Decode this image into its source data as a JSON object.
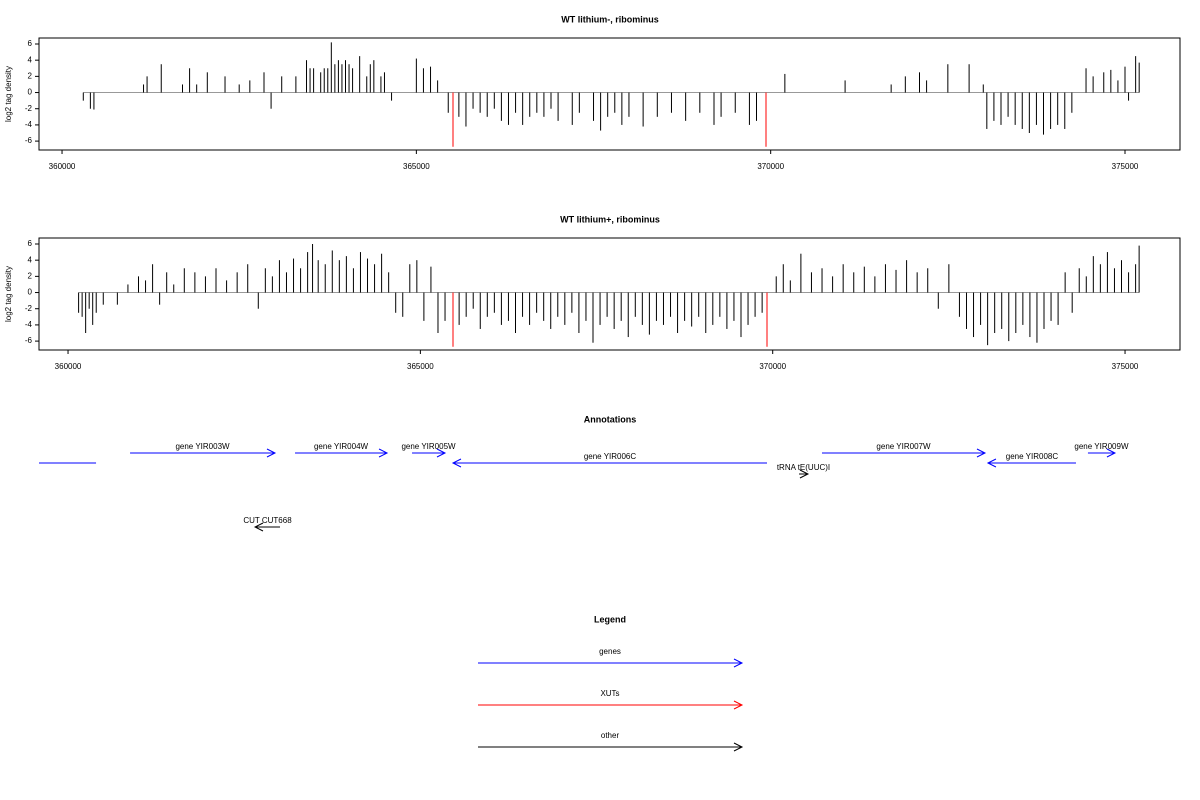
{
  "chart_data": [
    {
      "type": "bar",
      "title": "WT lithium-, ribominus",
      "y_label": "log2 tag density",
      "xlim": [
        359675,
        375776
      ],
      "ylim": [
        -7.1,
        6.74
      ],
      "xticks": [
        360000,
        365000,
        370000,
        375000
      ],
      "yticks": [
        -6,
        -4,
        -2,
        0,
        2,
        4,
        6
      ],
      "series": [
        {
          "color": "#000000",
          "x": [
            360300,
            360400,
            360450,
            361150,
            361200,
            361400,
            361700,
            361800,
            361900,
            362050,
            362300,
            362500,
            362650,
            362850,
            362950,
            363100,
            363300,
            363450,
            363500,
            363550,
            363650,
            363700,
            363750,
            363800,
            363850,
            363900,
            363950,
            364000,
            364050,
            364100,
            364200,
            364300,
            364350,
            364400,
            364500,
            364550,
            364650,
            365000,
            365100,
            365200,
            365300,
            365450,
            365600,
            365700,
            365800,
            365900,
            366000,
            366100,
            366200,
            366300,
            366400,
            366500,
            366600,
            366700,
            366800,
            366900,
            367000,
            367200,
            367300,
            367500,
            367600,
            367700,
            367800,
            367900,
            368000,
            368200,
            368400,
            368600,
            368800,
            369000,
            369200,
            369300,
            369500,
            369700,
            369800,
            370200,
            371050,
            371700,
            371900,
            372100,
            372200,
            372500,
            372800,
            373000,
            373050,
            373150,
            373250,
            373350,
            373450,
            373550,
            373650,
            373750,
            373850,
            373950,
            374050,
            374150,
            374250,
            374450,
            374550,
            374700,
            374800,
            374900,
            375000,
            375050,
            375150,
            375200
          ],
          "values": [
            -1,
            -2,
            -2.1,
            1,
            2,
            3.5,
            1,
            3,
            1,
            2.5,
            2,
            1,
            1.5,
            2.5,
            -2,
            2,
            2,
            4,
            3,
            3,
            2.5,
            3,
            3,
            6.2,
            3.5,
            4,
            3.5,
            4,
            3.5,
            3,
            4.5,
            2,
            3.5,
            4,
            2,
            2.5,
            -1,
            4.2,
            3,
            3.2,
            1.5,
            -2.5,
            -3,
            -4.2,
            -2,
            -2.5,
            -3,
            -2,
            -3.5,
            -4,
            -2.5,
            -4,
            -3,
            -2.5,
            -3,
            -2,
            -3.5,
            -4,
            -2.5,
            -3.5,
            -4.7,
            -3,
            -2.5,
            -4,
            -3,
            -4.2,
            -3,
            -2.5,
            -3.5,
            -2.5,
            -4,
            -3,
            -2.5,
            -4,
            -3.5,
            2.3,
            1.5,
            1,
            2,
            2.5,
            1.5,
            3.5,
            3.5,
            1,
            -4.5,
            -3.5,
            -4,
            -3,
            -4,
            -4.5,
            -5,
            -4,
            -5.2,
            -4.5,
            -4,
            -4.5,
            -2.5,
            3,
            2,
            2.5,
            2.8,
            1.5,
            3.2,
            -1,
            4.5,
            3.7
          ]
        },
        {
          "color": "#ff0000",
          "x": [
            365517,
            369934
          ],
          "values": [
            -6.7,
            -6.7
          ]
        }
      ]
    },
    {
      "type": "bar",
      "title": "WT lithium+, ribominus",
      "y_label": "log2 tag density",
      "xlim": [
        359588,
        375780
      ],
      "ylim": [
        -7.1,
        6.74
      ],
      "xticks": [
        360000,
        365000,
        370000,
        375000
      ],
      "yticks": [
        -6,
        -4,
        -2,
        0,
        2,
        4,
        6
      ],
      "series": [
        {
          "color": "#000000",
          "x": [
            360150,
            360200,
            360250,
            360300,
            360350,
            360400,
            360500,
            360700,
            360850,
            361000,
            361100,
            361200,
            361300,
            361400,
            361500,
            361650,
            361800,
            361950,
            362100,
            362250,
            362400,
            362550,
            362700,
            362800,
            362900,
            363000,
            363100,
            363200,
            363300,
            363400,
            363470,
            363550,
            363650,
            363750,
            363850,
            363950,
            364050,
            364150,
            364250,
            364350,
            364450,
            364550,
            364650,
            364750,
            364850,
            364950,
            365050,
            365150,
            365250,
            365350,
            365550,
            365650,
            365750,
            365850,
            365950,
            366050,
            366150,
            366250,
            366350,
            366450,
            366550,
            366650,
            366750,
            366850,
            366950,
            367050,
            367150,
            367250,
            367350,
            367450,
            367550,
            367650,
            367750,
            367850,
            367950,
            368050,
            368150,
            368250,
            368350,
            368450,
            368550,
            368650,
            368750,
            368850,
            368950,
            369050,
            369150,
            369250,
            369350,
            369450,
            369550,
            369650,
            369750,
            369850,
            370050,
            370150,
            370250,
            370400,
            370550,
            370700,
            370850,
            371000,
            371150,
            371300,
            371450,
            371600,
            371750,
            371900,
            372050,
            372200,
            372350,
            372500,
            372650,
            372750,
            372850,
            372950,
            373050,
            373150,
            373250,
            373350,
            373450,
            373550,
            373650,
            373750,
            373850,
            373950,
            374050,
            374150,
            374250,
            374350,
            374450,
            374550,
            374650,
            374750,
            374850,
            374950,
            375050,
            375150,
            375200
          ],
          "values": [
            -2.5,
            -3,
            -5,
            -2,
            -4,
            -2.5,
            -1.5,
            -1.5,
            1,
            2,
            1.5,
            3.5,
            -1.5,
            2.5,
            1,
            3,
            2.5,
            2,
            3,
            1.5,
            2.5,
            3.5,
            -2,
            3,
            2,
            4,
            2.5,
            4.2,
            3,
            5,
            6,
            4,
            3.5,
            5.2,
            4,
            4.5,
            3,
            5,
            4.2,
            3.5,
            4.8,
            2.5,
            -2.5,
            -3,
            3.5,
            4,
            -3.5,
            3.2,
            -5,
            -3.5,
            -4,
            -3,
            -2,
            -4.5,
            -3,
            -2.5,
            -4,
            -3.5,
            -5,
            -3,
            -4,
            -2.5,
            -3.5,
            -4.5,
            -3,
            -4,
            -2.5,
            -5,
            -3.5,
            -6.2,
            -4,
            -3,
            -4.5,
            -3.5,
            -5.5,
            -3,
            -4,
            -5.2,
            -3.5,
            -4,
            -3,
            -5,
            -3.5,
            -4.2,
            -3,
            -5,
            -4,
            -3,
            -4.5,
            -3.5,
            -5.5,
            -4,
            -3,
            -2.5,
            2,
            3.5,
            1.5,
            4.8,
            2.5,
            3,
            2,
            3.5,
            2.5,
            3.2,
            2,
            3.5,
            2.8,
            4,
            2.5,
            3,
            -2,
            3.5,
            -3,
            -4.5,
            -5.5,
            -4,
            -6.5,
            -5,
            -4.5,
            -6,
            -5,
            -4,
            -5.5,
            -6.2,
            -4.5,
            -3.5,
            -4,
            2.5,
            -2.5,
            3,
            2,
            4.5,
            3.5,
            5,
            3,
            4,
            2.5,
            3.5,
            5.8
          ]
        },
        {
          "color": "#ff0000",
          "x": [
            365463,
            369919
          ],
          "values": [
            -6.7,
            -6.7
          ]
        }
      ]
    }
  ],
  "annotations": {
    "title": "Annotations",
    "xlim": [
      359675,
      375776
    ],
    "features": [
      {
        "type": "gene",
        "label": null,
        "start": 359500,
        "end": 360480,
        "strand": "-",
        "color": "#0000ff"
      },
      {
        "type": "gene",
        "label": "gene YIR003W",
        "start": 360960,
        "end": 363005,
        "strand": "+",
        "color": "#0000ff"
      },
      {
        "type": "gene",
        "label": "gene YIR004W",
        "start": 363288,
        "end": 364586,
        "strand": "+",
        "color": "#0000ff"
      },
      {
        "type": "gene",
        "label": "gene YIR005W",
        "start": 364939,
        "end": 365404,
        "strand": "+",
        "color": "#0000ff"
      },
      {
        "type": "gene",
        "label": "gene YIR006C",
        "start": 365517,
        "end": 369948,
        "strand": "-",
        "color": "#0000ff"
      },
      {
        "type": "tRNA",
        "label": "tRNA tE(UUC)I",
        "start": 370400,
        "end": 370526,
        "strand": "+",
        "color": "#000000"
      },
      {
        "type": "gene",
        "label": "gene YIR007W",
        "start": 370724,
        "end": 373024,
        "strand": "+",
        "color": "#0000ff"
      },
      {
        "type": "gene",
        "label": "gene YIR008C",
        "start": 373066,
        "end": 374308,
        "strand": "-",
        "color": "#0000ff"
      },
      {
        "type": "gene",
        "label": "gene YIR009W",
        "start": 374477,
        "end": 374858,
        "strand": "+",
        "color": "#0000ff"
      },
      {
        "type": "CUT",
        "label": "CUT CUT668",
        "start": 362723,
        "end": 363076,
        "strand": "-",
        "color": "#000000"
      }
    ]
  },
  "legend": {
    "title": "Legend",
    "entries": [
      {
        "label": "genes",
        "color": "#0000ff"
      },
      {
        "label": "XUTs",
        "color": "#ff0000"
      },
      {
        "label": "other",
        "color": "#000000"
      }
    ]
  }
}
